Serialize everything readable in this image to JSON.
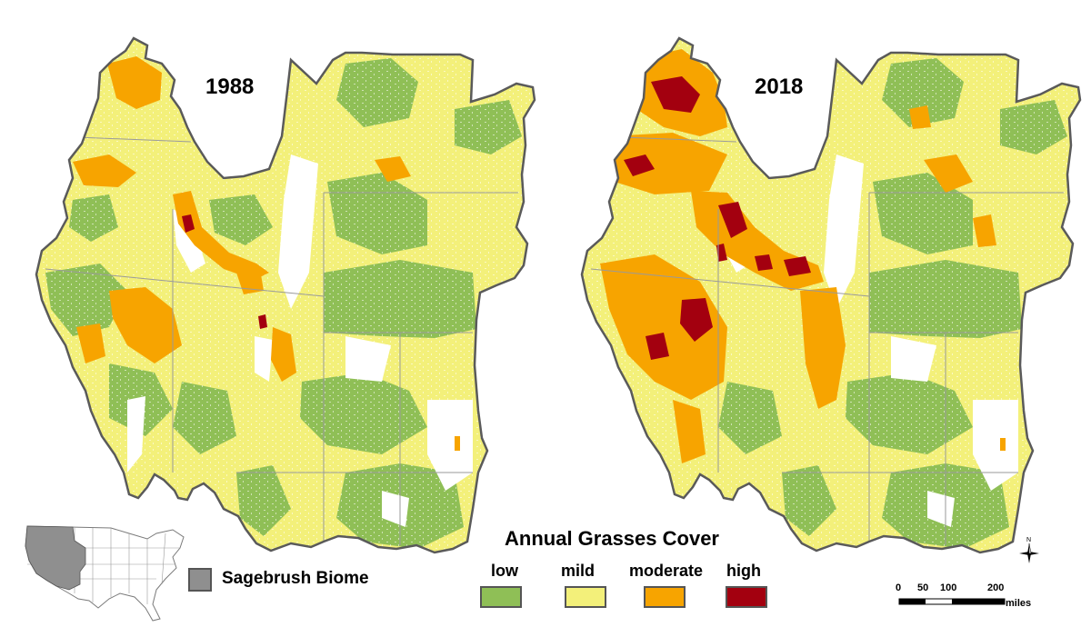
{
  "maps": [
    {
      "year": "1988"
    },
    {
      "year": "2018"
    }
  ],
  "legend": {
    "title": "Annual Grasses Cover",
    "classes": [
      {
        "label": "low",
        "color": "#8fbf56"
      },
      {
        "label": "mild",
        "color": "#f3f07a"
      },
      {
        "label": "moderate",
        "color": "#f7a400"
      },
      {
        "label": "high",
        "color": "#a3000f"
      }
    ]
  },
  "inset": {
    "label": "Sagebrush Biome",
    "color": "#8f8f8f"
  },
  "north_arrow": {
    "label": "N"
  },
  "scale_bar": {
    "ticks": [
      "0",
      "50",
      "100",
      "200"
    ],
    "unit": "miles"
  }
}
